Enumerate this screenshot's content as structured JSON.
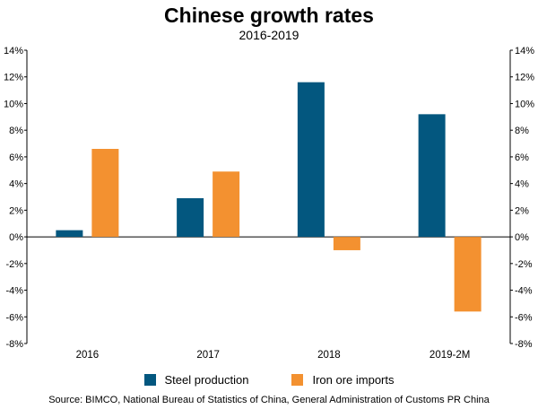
{
  "header": {
    "title": "Chinese growth rates",
    "subtitle": "2016-2019"
  },
  "legend": {
    "steel_label": "Steel production",
    "iron_label": "Iron ore imports"
  },
  "source": "Source: BIMCO, National Bureau of Statistics of China, General Administration of Customs PR China",
  "colors": {
    "steel": "#03577f",
    "iron": "#f39130"
  },
  "chart_data": {
    "type": "bar",
    "title": "Chinese growth rates",
    "subtitle": "2016-2019",
    "categories": [
      "2016",
      "2017",
      "2018",
      "2019-2M"
    ],
    "series": [
      {
        "name": "Steel production",
        "values": [
          0.5,
          2.9,
          11.6,
          9.2
        ]
      },
      {
        "name": "Iron ore imports",
        "values": [
          6.6,
          4.9,
          -1.0,
          -5.6
        ]
      }
    ],
    "ylim": [
      -8,
      14
    ],
    "y_ticks": [
      -8,
      -6,
      -4,
      -2,
      0,
      2,
      4,
      6,
      8,
      10,
      12,
      14
    ],
    "y_ticks_format": "percent",
    "y_axis_right_mirror": true,
    "grid": false,
    "legend_position": "bottom"
  }
}
